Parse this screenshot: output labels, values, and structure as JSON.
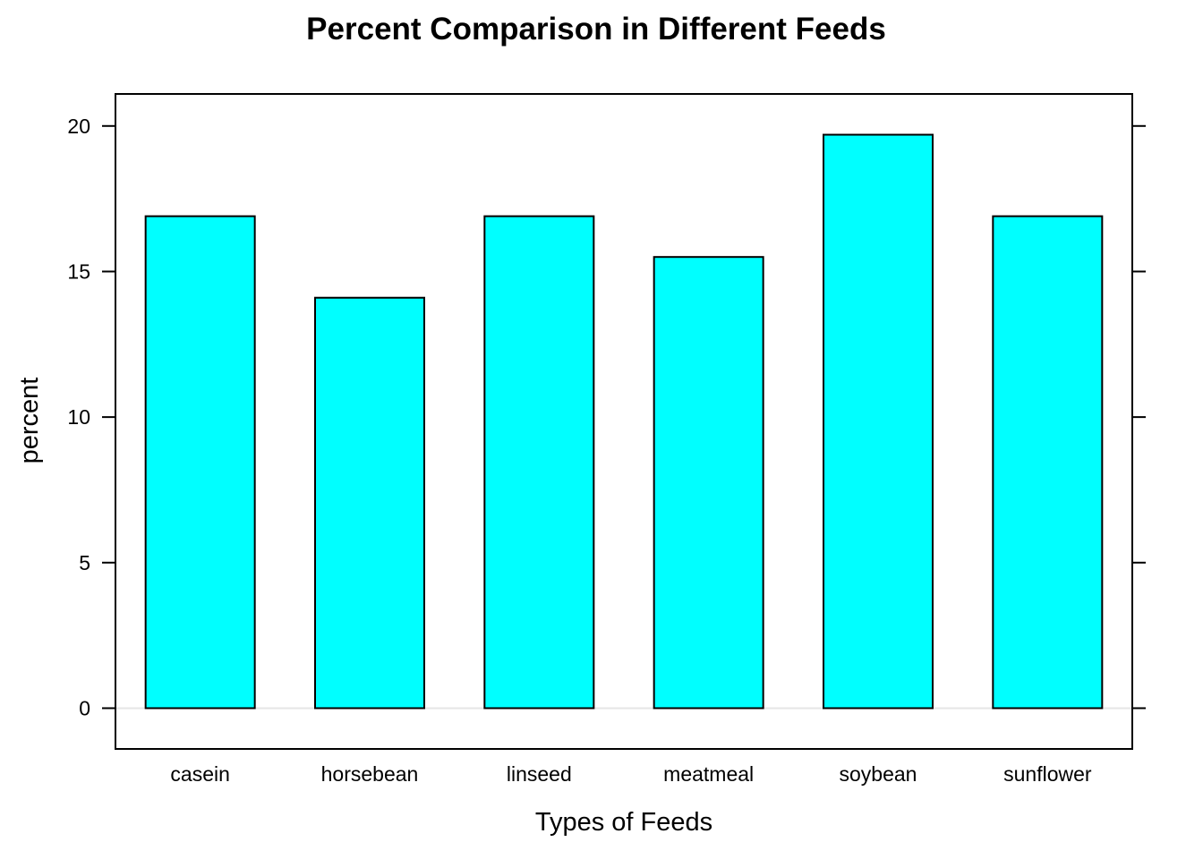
{
  "chart_data": {
    "type": "bar",
    "title": "Percent Comparison in Different Feeds",
    "xlabel": "Types of Feeds",
    "ylabel": "percent",
    "categories": [
      "casein",
      "horsebean",
      "linseed",
      "meatmeal",
      "soybean",
      "sunflower"
    ],
    "values": [
      16.9,
      14.1,
      16.9,
      15.5,
      19.7,
      16.9
    ],
    "ylim": [
      -1.4,
      21.1
    ],
    "yticks": [
      0,
      5,
      10,
      15,
      20
    ],
    "ytick_labels": [
      "0",
      "5",
      "10",
      "15",
      "20"
    ],
    "bar_color": "#00FFFF",
    "bar_edge_color": "#000000",
    "reference_line": 0,
    "reference_line_color": "#E6E6E6",
    "grid": false,
    "legend": "none"
  }
}
